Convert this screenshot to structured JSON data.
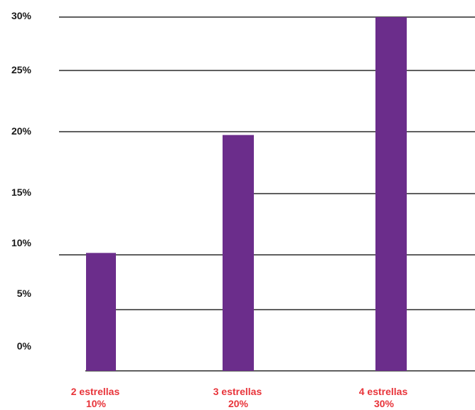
{
  "chart_data": {
    "type": "bar",
    "categories": [
      "2 estrellas",
      "3 estrellas",
      "4 estrellas"
    ],
    "values": [
      10,
      20,
      30
    ],
    "value_labels": [
      "10%",
      "20%",
      "30%"
    ],
    "y_ticks": [
      {
        "label": "0%"
      },
      {
        "label": "5%"
      },
      {
        "label": "10%"
      },
      {
        "label": "15%"
      },
      {
        "label": "20%"
      },
      {
        "label": "25%"
      },
      {
        "label": "30%"
      }
    ],
    "ylim": [
      0,
      30
    ],
    "title": "",
    "xlabel": "",
    "ylabel": "",
    "grid": true,
    "bar_color": "#6b2d8b",
    "label_color": "#e8343a",
    "grid_color": "#000000"
  }
}
